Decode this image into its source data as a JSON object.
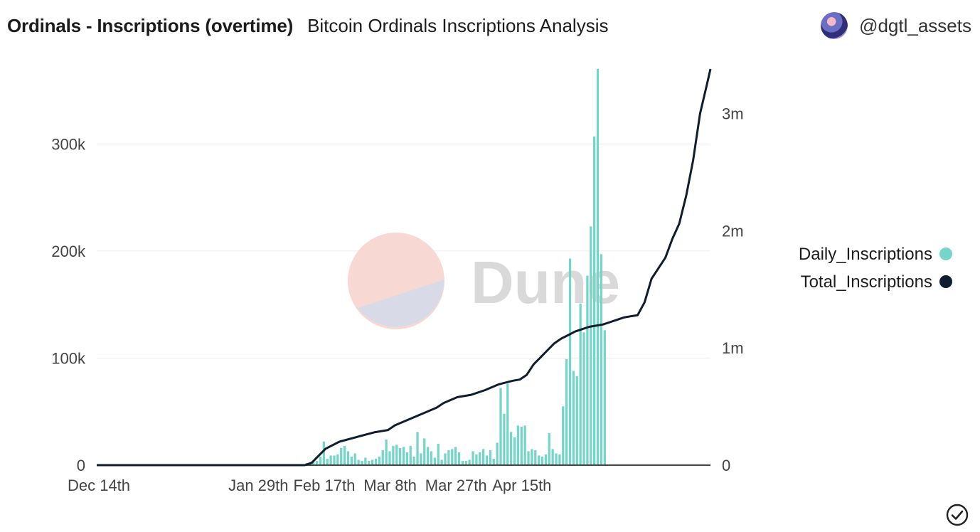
{
  "header": {
    "title": "Ordinals - Inscriptions (overtime)",
    "subtitle": "Bitcoin Ordinals Inscriptions Analysis",
    "author": "@dgtl_assets"
  },
  "watermark": {
    "text": "Dune"
  },
  "colors": {
    "bars": "#76d5c9",
    "line": "#0f1d2e",
    "grid": "#ececec"
  },
  "chart_data": {
    "type": "bar+line",
    "x_labels": [
      "Dec 14th",
      "Jan 29th",
      "Feb 17th",
      "Mar 8th",
      "Mar 27th",
      "Apr 15th"
    ],
    "x_label_days": [
      0,
      46,
      65,
      84,
      103,
      122
    ],
    "y_left": {
      "ticks": [
        0,
        100000,
        200000,
        300000
      ],
      "tick_labels": [
        "0",
        "100k",
        "200k",
        "300k"
      ],
      "max": 370000
    },
    "y_right": {
      "ticks": [
        0,
        1000000,
        2000000,
        3000000
      ],
      "tick_labels": [
        "0",
        "1m",
        "2m",
        "3m"
      ],
      "max": 3380000
    },
    "grid": true,
    "legend_position": "right",
    "series": [
      {
        "name": "Daily_Inscriptions",
        "type": "bar",
        "axis": "left",
        "start_day": 60,
        "values": [
          2000,
          2000,
          3000,
          4000,
          8000,
          22000,
          6000,
          9000,
          9000,
          10000,
          16000,
          18000,
          13000,
          8000,
          11000,
          5000,
          4000,
          7000,
          4000,
          5000,
          6000,
          8000,
          14000,
          24000,
          13000,
          18000,
          19000,
          16000,
          17000,
          12000,
          18000,
          8000,
          31000,
          11000,
          25000,
          17000,
          13000,
          7000,
          20000,
          5000,
          11000,
          14000,
          15000,
          17000,
          12000,
          4000,
          4000,
          5000,
          13000,
          10000,
          12000,
          15000,
          9000,
          14000,
          6000,
          21000,
          72000,
          48000,
          76000,
          31000,
          26000,
          37000,
          36000,
          37000,
          13000,
          15000,
          14000,
          9000,
          8000,
          10000,
          30000,
          15000,
          11000,
          10000,
          55000,
          99000,
          193000,
          88000,
          83000,
          151000,
          124000,
          177000,
          223000,
          307000,
          372000,
          197000,
          126000
        ]
      },
      {
        "name": "Total_Inscriptions",
        "type": "line",
        "axis": "right",
        "points": [
          [
            0,
            0
          ],
          [
            60,
            0
          ],
          [
            62,
            20000
          ],
          [
            64,
            80000
          ],
          [
            66,
            140000
          ],
          [
            70,
            200000
          ],
          [
            75,
            240000
          ],
          [
            80,
            280000
          ],
          [
            84,
            300000
          ],
          [
            86,
            340000
          ],
          [
            90,
            390000
          ],
          [
            94,
            440000
          ],
          [
            98,
            490000
          ],
          [
            100,
            530000
          ],
          [
            104,
            580000
          ],
          [
            108,
            600000
          ],
          [
            112,
            640000
          ],
          [
            116,
            690000
          ],
          [
            120,
            720000
          ],
          [
            122,
            730000
          ],
          [
            124,
            770000
          ],
          [
            126,
            860000
          ],
          [
            128,
            920000
          ],
          [
            130,
            980000
          ],
          [
            132,
            1040000
          ],
          [
            134,
            1080000
          ],
          [
            136,
            1110000
          ],
          [
            138,
            1140000
          ],
          [
            140,
            1160000
          ],
          [
            142,
            1180000
          ],
          [
            144,
            1190000
          ],
          [
            146,
            1200000
          ],
          [
            148,
            1220000
          ],
          [
            150,
            1240000
          ],
          [
            152,
            1260000
          ],
          [
            154,
            1270000
          ],
          [
            156,
            1280000
          ],
          [
            158,
            1390000
          ],
          [
            160,
            1590000
          ],
          [
            162,
            1680000
          ],
          [
            164,
            1770000
          ],
          [
            166,
            1930000
          ],
          [
            168,
            2060000
          ],
          [
            170,
            2300000
          ],
          [
            172,
            2600000
          ],
          [
            174,
            3000000
          ],
          [
            176,
            3250000
          ],
          [
            177,
            3380000
          ]
        ]
      }
    ]
  }
}
